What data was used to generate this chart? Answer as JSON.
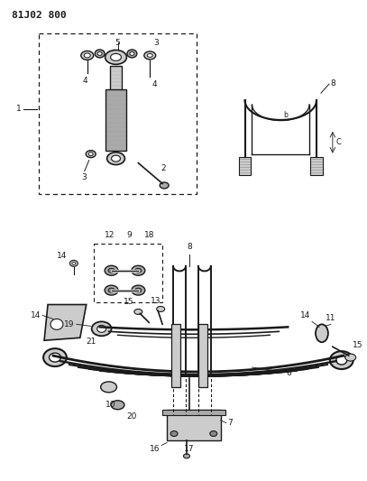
{
  "title": "81J02 800",
  "bg_color": "#ffffff",
  "lc": "#1a1a1a",
  "gray1": "#aaaaaa",
  "gray2": "#cccccc",
  "gray3": "#888888",
  "title_fs": 8,
  "label_fs": 6.5,
  "fig_w": 4.07,
  "fig_h": 5.33,
  "dpi": 100
}
